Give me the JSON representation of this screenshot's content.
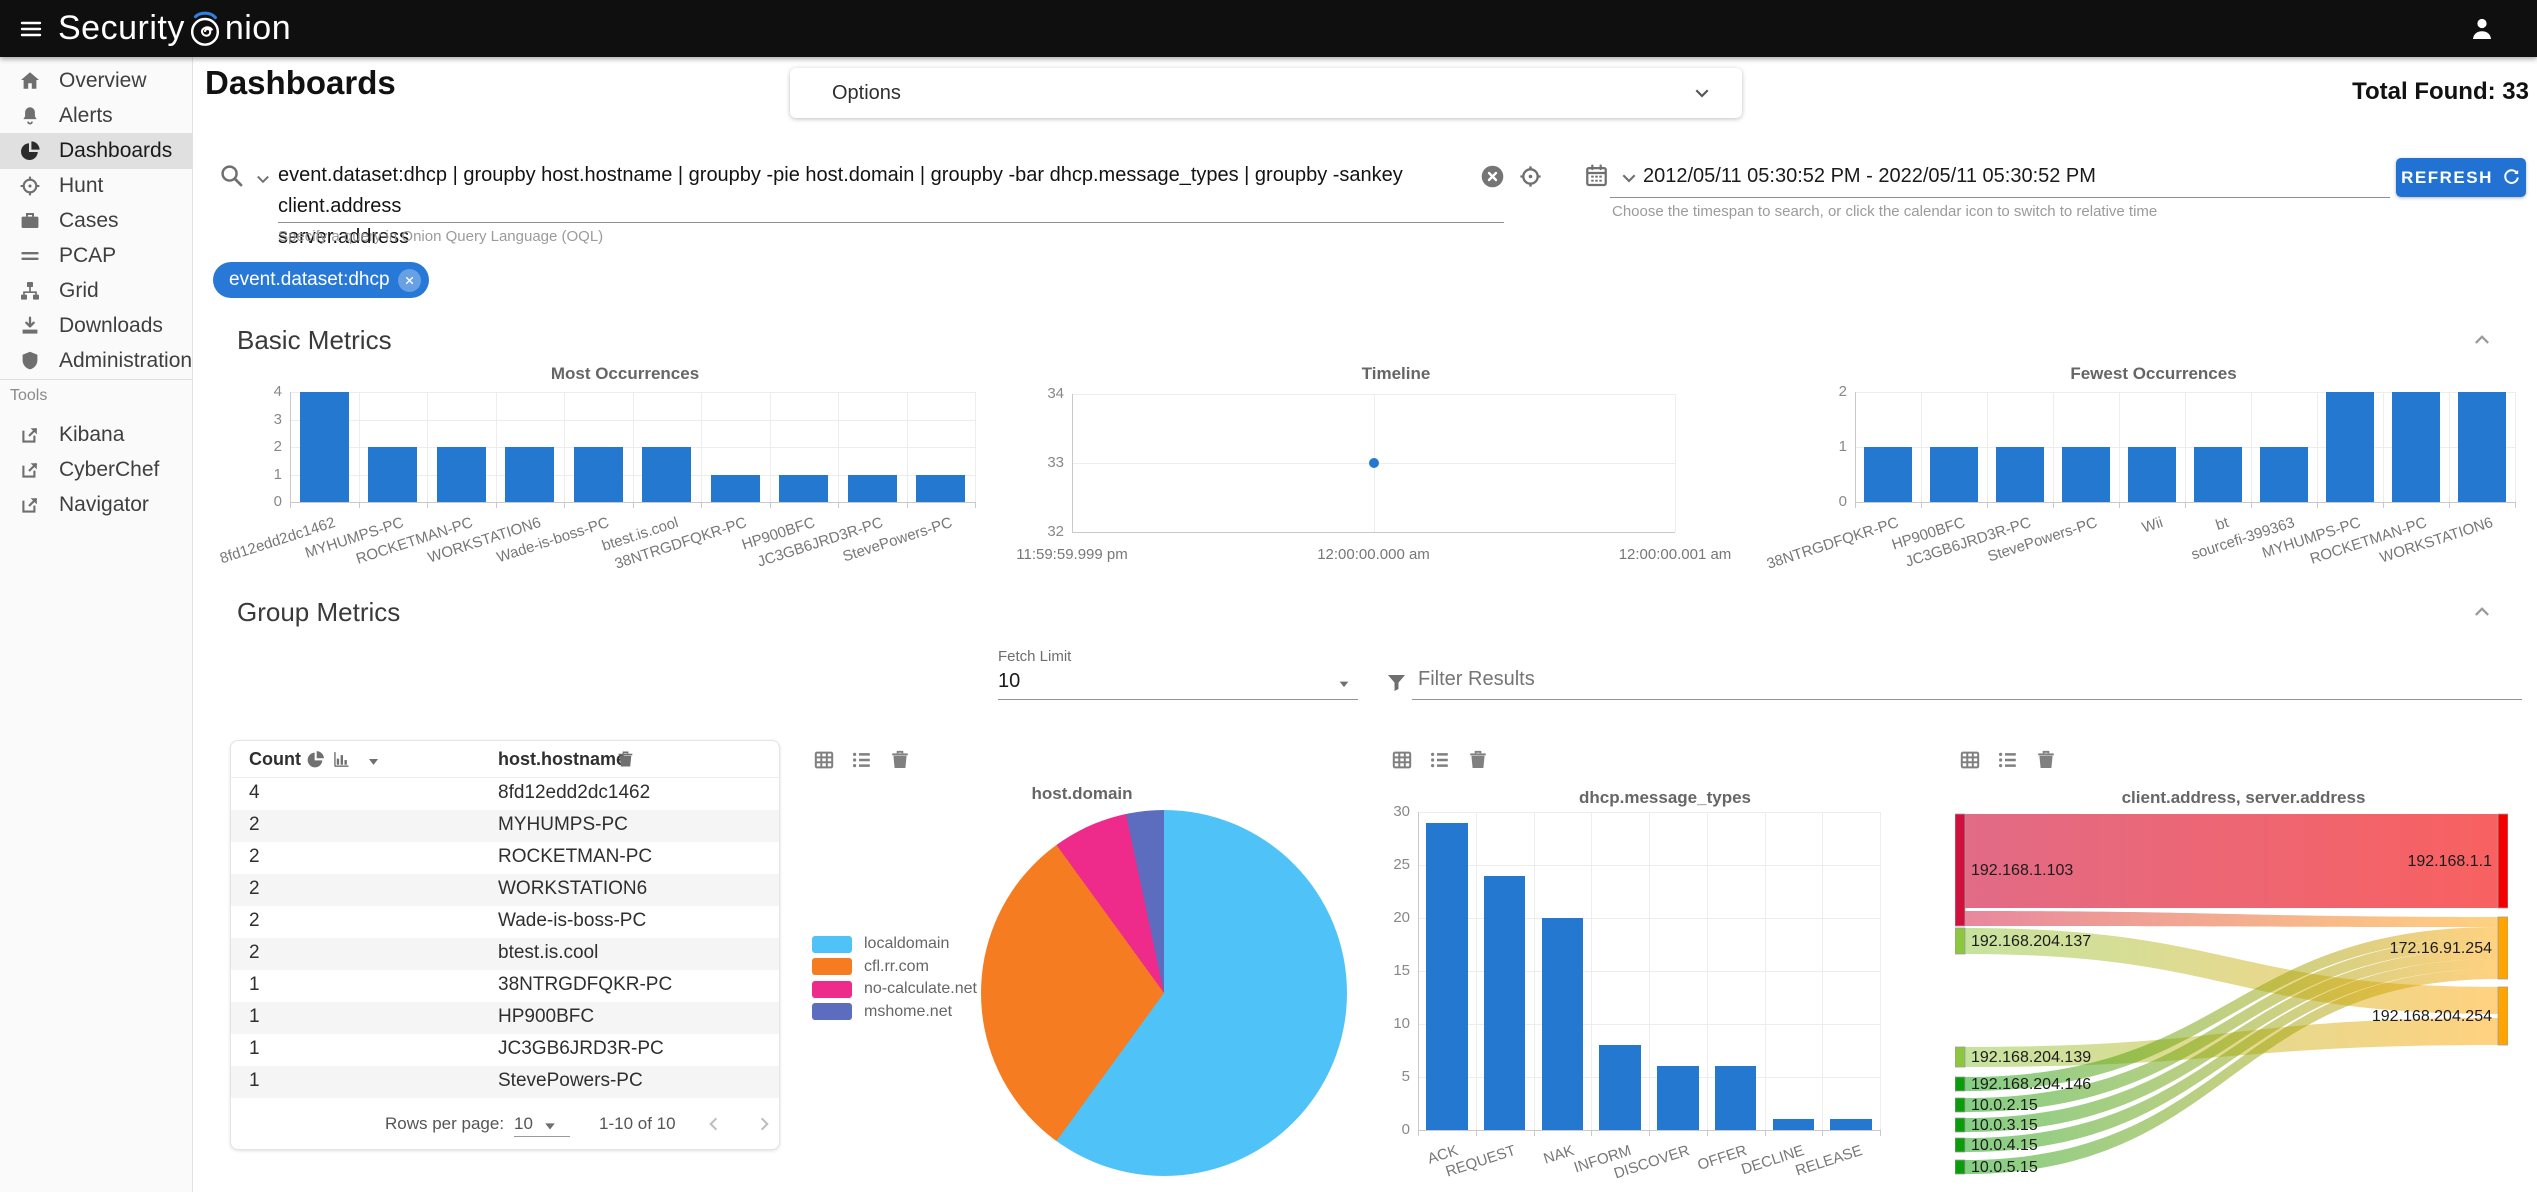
{
  "app": {
    "title_part1": "Security",
    "title_part2": "nion",
    "total_found_label": "Total Found:",
    "total_found_value": "33"
  },
  "topbar_icons": [
    "hamburger-icon",
    "onion-logo-icon",
    "person-icon"
  ],
  "sidebar": {
    "items": [
      {
        "label": "Overview",
        "icon": "home-icon",
        "selected": false
      },
      {
        "label": "Alerts",
        "icon": "bell-icon",
        "selected": false
      },
      {
        "label": "Dashboards",
        "icon": "pie-chart-icon",
        "selected": true
      },
      {
        "label": "Hunt",
        "icon": "crosshair-icon",
        "selected": false
      },
      {
        "label": "Cases",
        "icon": "briefcase-icon",
        "selected": false
      },
      {
        "label": "PCAP",
        "icon": "lines-icon",
        "selected": false
      },
      {
        "label": "Grid",
        "icon": "org-grid-icon",
        "selected": false
      },
      {
        "label": "Downloads",
        "icon": "download-icon",
        "selected": false
      },
      {
        "label": "Administration",
        "icon": "shield-icon",
        "selected": false
      }
    ],
    "tools_label": "Tools",
    "tools": [
      {
        "label": "Kibana",
        "icon": "external-link-icon"
      },
      {
        "label": "CyberChef",
        "icon": "external-link-icon"
      },
      {
        "label": "Navigator",
        "icon": "external-link-icon"
      }
    ]
  },
  "header": {
    "page_title": "Dashboards",
    "options_label": "Options"
  },
  "search": {
    "query_line1": "event.dataset:dhcp | groupby host.hostname | groupby -pie host.domain | groupby -bar dhcp.message_types | groupby -sankey client.address",
    "query_line2": "server.address",
    "hint": "Specify a query in Onion Query Language (OQL)",
    "chip": "event.dataset:dhcp"
  },
  "timespan": {
    "range": "2012/05/11 05:30:52 PM - 2022/05/11 05:30:52 PM",
    "hint": "Choose the timespan to search, or click the calendar icon to switch to relative time",
    "refresh_label": "REFRESH"
  },
  "sections": {
    "basic": "Basic Metrics",
    "group": "Group Metrics"
  },
  "group_controls": {
    "fetch_limit_label": "Fetch Limit",
    "fetch_limit_value": "10",
    "filter_placeholder": "Filter Results"
  },
  "table": {
    "count_header": "Count",
    "field_header": "host.hostname",
    "rows": [
      {
        "count": "4",
        "hostname": "8fd12edd2dc1462"
      },
      {
        "count": "2",
        "hostname": "MYHUMPS-PC"
      },
      {
        "count": "2",
        "hostname": "ROCKETMAN-PC"
      },
      {
        "count": "2",
        "hostname": "WORKSTATION6"
      },
      {
        "count": "2",
        "hostname": "Wade-is-boss-PC"
      },
      {
        "count": "2",
        "hostname": "btest.is.cool"
      },
      {
        "count": "1",
        "hostname": "38NTRGDFQKR-PC"
      },
      {
        "count": "1",
        "hostname": "HP900BFC"
      },
      {
        "count": "1",
        "hostname": "JC3GB6JRD3R-PC"
      },
      {
        "count": "1",
        "hostname": "StevePowers-PC"
      }
    ],
    "footer": {
      "rows_per_page_label": "Rows per page:",
      "rows_per_page_value": "10",
      "range": "1-10 of 10"
    }
  },
  "colors": {
    "accent_blue": "#2478cf",
    "chip_blue": "#2878d8",
    "sankey_left_red": "#d0103c",
    "sankey_green_light": "#8dc63f",
    "sankey_green_dark": "#0a9c0a",
    "sankey_right_red": "#f40000",
    "sankey_orange": "#ffa400"
  },
  "chart_data": [
    {
      "id": "most_occurrences",
      "type": "bar",
      "title": "Most Occurrences",
      "categories": [
        "8fd12edd2dc1462",
        "MYHUMPS-PC",
        "ROCKETMAN-PC",
        "WORKSTATION6",
        "Wade-is-boss-PC",
        "btest.is.cool",
        "38NTRGDFQKR-PC",
        "HP900BFC",
        "JC3GB6JRD3R-PC",
        "StevePowers-PC"
      ],
      "values": [
        4,
        2,
        2,
        2,
        2,
        2,
        1,
        1,
        1,
        1
      ],
      "ylim": [
        0,
        4
      ],
      "yticks": [
        0,
        1,
        2,
        3,
        4
      ],
      "grid": true,
      "bar_color": "#2478cf"
    },
    {
      "id": "timeline",
      "type": "scatter",
      "title": "Timeline",
      "x_ticklabels": [
        "11:59:59.999 pm",
        "12:00:00.000 am",
        "12:00:00.001 am"
      ],
      "points": [
        {
          "x": "12:00:00.000 am",
          "y": 33
        }
      ],
      "ylim": [
        32,
        34
      ],
      "yticks": [
        32,
        33,
        34
      ],
      "grid": true,
      "point_color": "#2478cf"
    },
    {
      "id": "fewest_occurrences",
      "type": "bar",
      "title": "Fewest Occurrences",
      "categories": [
        "38NTRGDFQKR-PC",
        "HP900BFC",
        "JC3GB6JRD3R-PC",
        "StevePowers-PC",
        "Wii",
        "bt",
        "sourcefi-399363",
        "MYHUMPS-PC",
        "ROCKETMAN-PC",
        "WORKSTATION6"
      ],
      "values": [
        1,
        1,
        1,
        1,
        1,
        1,
        1,
        2,
        2,
        2
      ],
      "ylim": [
        0,
        2
      ],
      "yticks": [
        0,
        1,
        2
      ],
      "grid": true,
      "bar_color": "#2478cf"
    },
    {
      "id": "host_domain",
      "type": "pie",
      "title": "host.domain",
      "labels": [
        "localdomain",
        "cfl.rr.com",
        "no-calculate.net",
        "mshome.net"
      ],
      "values": [
        18,
        9,
        2,
        1
      ],
      "colors": [
        "#4fc3f7",
        "#f57c21",
        "#ee2a8b",
        "#5c6cbe"
      ],
      "legend_position": "left"
    },
    {
      "id": "dhcp_message_types",
      "type": "bar",
      "title": "dhcp.message_types",
      "categories": [
        "ACK",
        "REQUEST",
        "NAK",
        "INFORM",
        "DISCOVER",
        "OFFER",
        "DECLINE",
        "RELEASE"
      ],
      "values": [
        29,
        24,
        20,
        8,
        6,
        6,
        1,
        1
      ],
      "ylim": [
        0,
        30
      ],
      "yticks": [
        0,
        5,
        10,
        15,
        20,
        25,
        30
      ],
      "grid": true,
      "bar_color": "#2478cf"
    },
    {
      "id": "client_server_sankey",
      "type": "sankey",
      "title": "client.address, server.address",
      "nodes": [
        {
          "name": "192.168.1.103",
          "side": "left",
          "color": "#d0103c"
        },
        {
          "name": "192.168.204.137",
          "side": "left",
          "color": "#8dc63f"
        },
        {
          "name": "192.168.204.139",
          "side": "left",
          "color": "#8dc63f"
        },
        {
          "name": "192.168.204.146",
          "side": "left",
          "color": "#0a9c0a"
        },
        {
          "name": "10.0.2.15",
          "side": "left",
          "color": "#0a9c0a"
        },
        {
          "name": "10.0.3.15",
          "side": "left",
          "color": "#0a9c0a"
        },
        {
          "name": "10.0.4.15",
          "side": "left",
          "color": "#0a9c0a"
        },
        {
          "name": "10.0.5.15",
          "side": "left",
          "color": "#0a9c0a"
        },
        {
          "name": "192.168.1.1",
          "side": "right",
          "color": "#f40000"
        },
        {
          "name": "172.16.91.254",
          "side": "right",
          "color": "#ffa400"
        },
        {
          "name": "192.168.204.254",
          "side": "right",
          "color": "#ffa400"
        }
      ],
      "links": [
        {
          "source": "192.168.1.103",
          "target": "192.168.1.1",
          "value": 12
        },
        {
          "source": "192.168.1.103",
          "target": "172.16.91.254",
          "value": 1
        },
        {
          "source": "192.168.204.137",
          "target": "192.168.204.254",
          "value": 3
        },
        {
          "source": "192.168.204.139",
          "target": "192.168.204.254",
          "value": 3
        },
        {
          "source": "192.168.204.146",
          "target": "172.16.91.254",
          "value": 2
        },
        {
          "source": "10.0.2.15",
          "target": "172.16.91.254",
          "value": 2
        },
        {
          "source": "10.0.3.15",
          "target": "172.16.91.254",
          "value": 2
        },
        {
          "source": "10.0.4.15",
          "target": "172.16.91.254",
          "value": 2
        },
        {
          "source": "10.0.5.15",
          "target": "172.16.91.254",
          "value": 2
        }
      ]
    }
  ]
}
